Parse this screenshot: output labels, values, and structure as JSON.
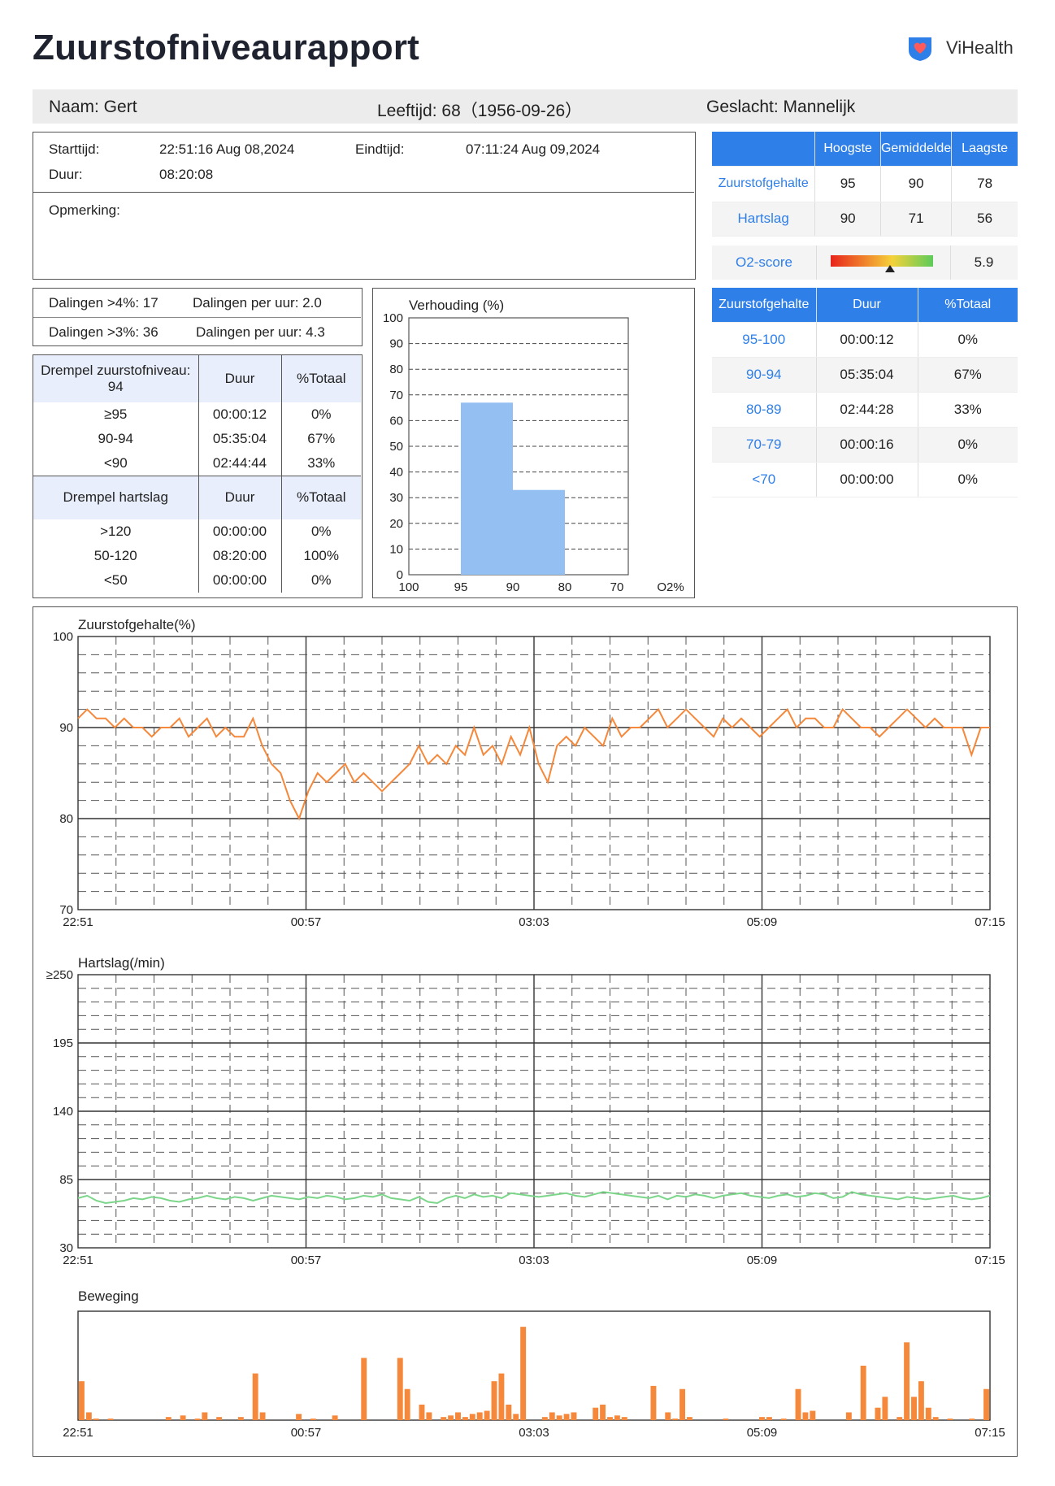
{
  "header": {
    "title": "Zuurstofniveaurapport",
    "brand": "ViHealth"
  },
  "patient": {
    "name": "Naam: Gert",
    "age": "Leeftijd: 68（1956-09-26）",
    "gender": "Geslacht: Mannelijk"
  },
  "session": {
    "start_label": "Starttijd:",
    "start_value": "22:51:16 Aug 08,2024",
    "end_label": "Eindtijd:",
    "end_value": "07:11:24 Aug 09,2024",
    "duration_label": "Duur:",
    "duration_value": "08:20:08",
    "remark_label": "Opmerking:"
  },
  "drops": {
    "d4": "Dalingen >4%: 17",
    "d4_rate": "Dalingen per uur: 2.0",
    "d3": "Dalingen >3%: 36",
    "d3_rate": "Dalingen per uur: 4.3"
  },
  "o2_threshold": {
    "header": [
      "Drempel zuurstofniveau: 94",
      "Duur",
      "%Totaal"
    ],
    "rows": [
      [
        "≥95",
        "00:00:12",
        "0%"
      ],
      [
        "90-94",
        "05:35:04",
        "67%"
      ],
      [
        "<90",
        "02:44:44",
        "33%"
      ]
    ]
  },
  "hr_threshold": {
    "header": [
      "Drempel hartslag",
      "Duur",
      "%Totaal"
    ],
    "rows": [
      [
        ">120",
        "00:00:00",
        "0%"
      ],
      [
        "50-120",
        "08:20:00",
        "100%"
      ],
      [
        "<50",
        "00:00:00",
        "0%"
      ]
    ]
  },
  "stats": {
    "header": [
      "",
      "Hoogste",
      "Gemiddelde",
      "Laagste"
    ],
    "rows": [
      {
        "label": "Zuurstofgehalte",
        "values": [
          "95",
          "90",
          "78"
        ]
      },
      {
        "label": "Hartslag",
        "values": [
          "90",
          "71",
          "56"
        ]
      }
    ]
  },
  "o2score": {
    "label": "O2-score",
    "value": "5.9",
    "position": 0.58
  },
  "range_table": {
    "header": [
      "Zuurstofgehalte",
      "Duur",
      "%Totaal"
    ],
    "rows": [
      {
        "range": "95-100",
        "duration": "00:00:12",
        "pct": "0%"
      },
      {
        "range": "90-94",
        "duration": "05:35:04",
        "pct": "67%"
      },
      {
        "range": "80-89",
        "duration": "02:44:28",
        "pct": "33%"
      },
      {
        "range": "70-79",
        "duration": "00:00:16",
        "pct": "0%"
      },
      {
        "range": "<70",
        "duration": "00:00:00",
        "pct": "0%"
      }
    ]
  },
  "colors": {
    "accent": "#2f7fe8",
    "spo2": "#f5883a",
    "heart_rate": "#7cd68a",
    "histogram": "#93bff2",
    "motion": "#f5883a"
  },
  "chart_data": [
    {
      "type": "bar",
      "title": "Verhouding (%)",
      "categories": [
        "95-100",
        "90-95",
        "80-90",
        "70-80"
      ],
      "x_ticks": [
        "100",
        "95",
        "90",
        "80",
        "70",
        "O2%"
      ],
      "y_ticks": [
        "0",
        "10",
        "20",
        "30",
        "40",
        "50",
        "60",
        "70",
        "80",
        "90",
        "100"
      ],
      "values": [
        0,
        67,
        33,
        0
      ],
      "ylim": [
        0,
        100
      ]
    },
    {
      "type": "line",
      "title": "Zuurstofgehalte(%)",
      "x_ticks": [
        "22:51",
        "00:57",
        "03:03",
        "05:09",
        "07:15"
      ],
      "y_ticks": [
        "70",
        "80",
        "90",
        "100"
      ],
      "ylim": [
        70,
        100
      ],
      "series": [
        {
          "values": [
            91,
            92,
            91,
            91,
            90,
            91,
            90,
            90,
            89,
            90,
            90,
            91,
            89,
            90,
            91,
            89,
            90,
            89,
            89,
            91,
            88,
            86,
            85,
            82,
            80,
            83,
            85,
            84,
            85,
            86,
            84,
            85,
            84,
            83,
            84,
            85,
            86,
            88,
            86,
            87,
            86,
            88,
            87,
            90,
            87,
            88,
            86,
            89,
            87,
            90,
            86,
            84,
            88,
            89,
            88,
            90,
            89,
            88,
            91,
            89,
            90,
            90,
            91,
            92,
            90,
            91,
            92,
            91,
            90,
            89,
            91,
            90,
            91,
            90,
            89,
            90,
            91,
            92,
            90,
            91,
            91,
            90,
            90,
            92,
            91,
            90,
            90,
            89,
            90,
            91,
            92,
            91,
            90,
            91,
            90,
            90,
            90,
            87,
            90,
            90
          ]
        }
      ]
    },
    {
      "type": "line",
      "title": "Hartslag(/min)",
      "x_ticks": [
        "22:51",
        "00:57",
        "03:03",
        "05:09",
        "07:15"
      ],
      "y_ticks": [
        "30",
        "85",
        "140",
        "195",
        "≥250"
      ],
      "ylim": [
        30,
        250
      ],
      "series": [
        {
          "values": [
            70,
            72,
            68,
            66,
            67,
            68,
            70,
            69,
            71,
            70,
            68,
            67,
            69,
            70,
            72,
            70,
            69,
            71,
            70,
            68,
            70,
            72,
            71,
            70,
            69,
            71,
            70,
            72,
            71,
            69,
            70,
            72,
            71,
            73,
            70,
            69,
            68,
            71,
            67,
            66,
            70,
            72,
            70,
            73,
            71,
            72,
            70,
            74,
            73,
            72,
            71,
            72,
            73,
            74,
            72,
            71,
            73,
            75,
            74,
            73,
            72,
            71,
            70,
            72,
            69,
            72,
            71,
            73,
            72,
            70,
            72,
            73,
            74,
            72,
            71,
            70,
            72,
            73,
            71,
            72,
            74,
            73,
            70,
            71,
            75,
            73,
            72,
            71,
            70,
            69,
            71,
            70,
            69,
            70,
            71,
            72,
            70,
            69,
            70,
            72
          ]
        }
      ]
    },
    {
      "type": "bar",
      "title": "Beweging",
      "x_ticks": [
        "22:51",
        "00:57",
        "03:03",
        "05:09",
        "07:15"
      ],
      "values": [
        25,
        5,
        1,
        0,
        1,
        0,
        0,
        0,
        0,
        0,
        0,
        0,
        2,
        0,
        3,
        0,
        1,
        5,
        0,
        2,
        0,
        0,
        2,
        0,
        30,
        5,
        0,
        0,
        0,
        0,
        4,
        0,
        1,
        0,
        0,
        3,
        0,
        0,
        0,
        40,
        0,
        0,
        0,
        0,
        40,
        20,
        0,
        10,
        5,
        0,
        2,
        3,
        5,
        2,
        4,
        5,
        6,
        25,
        30,
        10,
        4,
        60,
        0,
        0,
        2,
        5,
        3,
        4,
        5,
        0,
        0,
        8,
        10,
        2,
        3,
        2,
        0,
        0,
        0,
        22,
        0,
        5,
        1,
        20,
        2,
        0,
        0,
        0,
        0,
        1,
        0,
        0,
        0,
        0,
        2,
        2,
        0,
        1,
        0,
        20,
        5,
        6,
        0,
        0,
        0,
        0,
        5,
        0,
        35,
        0,
        8,
        15,
        0,
        2,
        50,
        15,
        25,
        8,
        2,
        0,
        1,
        0,
        0,
        1,
        0,
        20
      ]
    }
  ]
}
